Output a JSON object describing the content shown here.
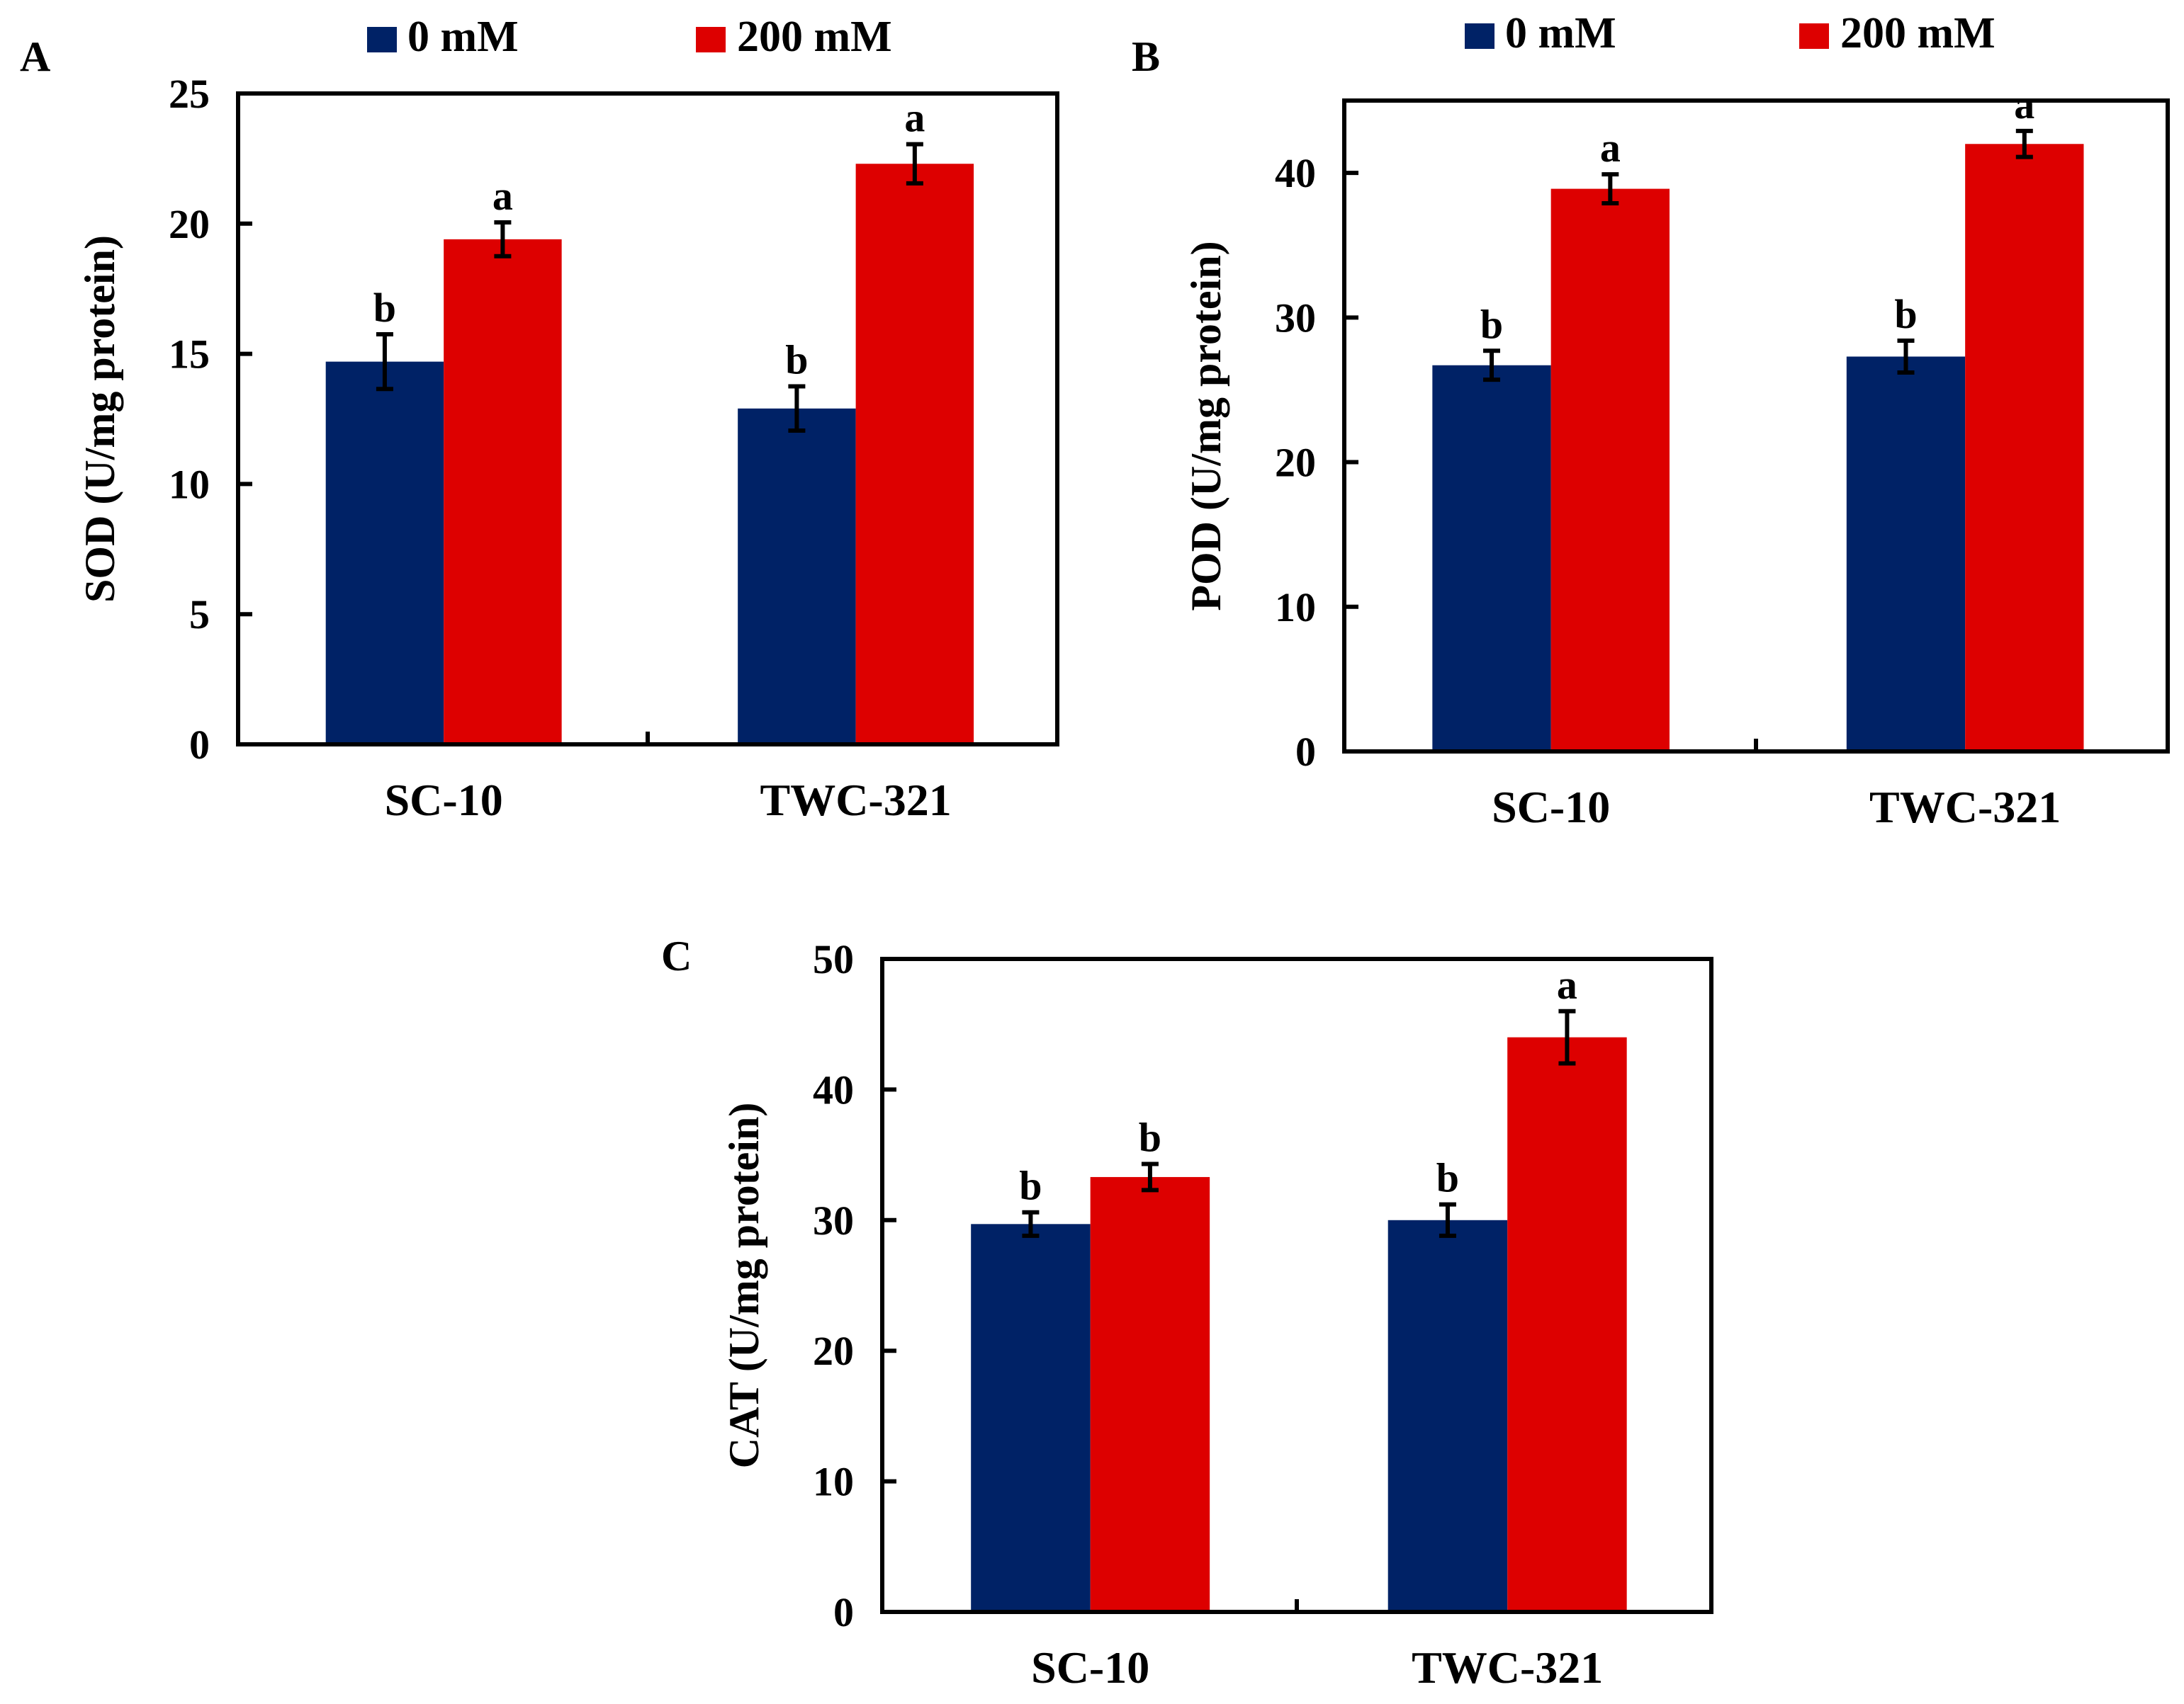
{
  "colors": {
    "0 mM": "#002266",
    "200 mM": "#dd0000"
  },
  "chart_data": [
    {
      "type": "bar",
      "panel": "A",
      "title": "",
      "ylabel": "SOD (U/mg protein)",
      "xlabel": "",
      "categories": [
        "SC-10",
        "TWC-321"
      ],
      "ylim": [
        0,
        25
      ],
      "yticks": [
        0,
        5,
        10,
        15,
        20,
        25
      ],
      "legend": [
        "0 mM",
        "200 mM"
      ],
      "legend_position": "top",
      "series": [
        {
          "name": "0 mM",
          "values": [
            14.7,
            12.9
          ],
          "errors": [
            1.05,
            0.85
          ],
          "letters": [
            "b",
            "b"
          ]
        },
        {
          "name": "200 mM",
          "values": [
            19.4,
            22.3
          ],
          "errors": [
            0.65,
            0.75
          ],
          "letters": [
            "a",
            "a"
          ]
        }
      ]
    },
    {
      "type": "bar",
      "panel": "B",
      "title": "",
      "ylabel": "POD (U/mg protein)",
      "xlabel": "",
      "categories": [
        "SC-10",
        "TWC-321"
      ],
      "ylim": [
        0,
        45
      ],
      "yticks": [
        0,
        10,
        20,
        30,
        40
      ],
      "legend": [
        "0 mM",
        "200 mM"
      ],
      "legend_position": "top",
      "series": [
        {
          "name": "0 mM",
          "values": [
            26.7,
            27.3
          ],
          "errors": [
            1.0,
            1.1
          ],
          "letters": [
            "b",
            "b"
          ]
        },
        {
          "name": "200 mM",
          "values": [
            38.9,
            42.0
          ],
          "errors": [
            1.0,
            0.9
          ],
          "letters": [
            "a",
            "a"
          ]
        }
      ]
    },
    {
      "type": "bar",
      "panel": "C",
      "title": "",
      "ylabel": "CAT (U/mg protein)",
      "xlabel": "",
      "categories": [
        "SC-10",
        "TWC-321"
      ],
      "ylim": [
        0,
        50
      ],
      "yticks": [
        0,
        10,
        20,
        30,
        40,
        50
      ],
      "legend": [],
      "series": [
        {
          "name": "0 mM",
          "values": [
            29.7,
            30.0
          ],
          "errors": [
            0.9,
            1.2
          ],
          "letters": [
            "b",
            "b"
          ]
        },
        {
          "name": "200 mM",
          "values": [
            33.3,
            44.0
          ],
          "errors": [
            1.0,
            2.0
          ],
          "letters": [
            "b",
            "a"
          ]
        }
      ]
    }
  ]
}
